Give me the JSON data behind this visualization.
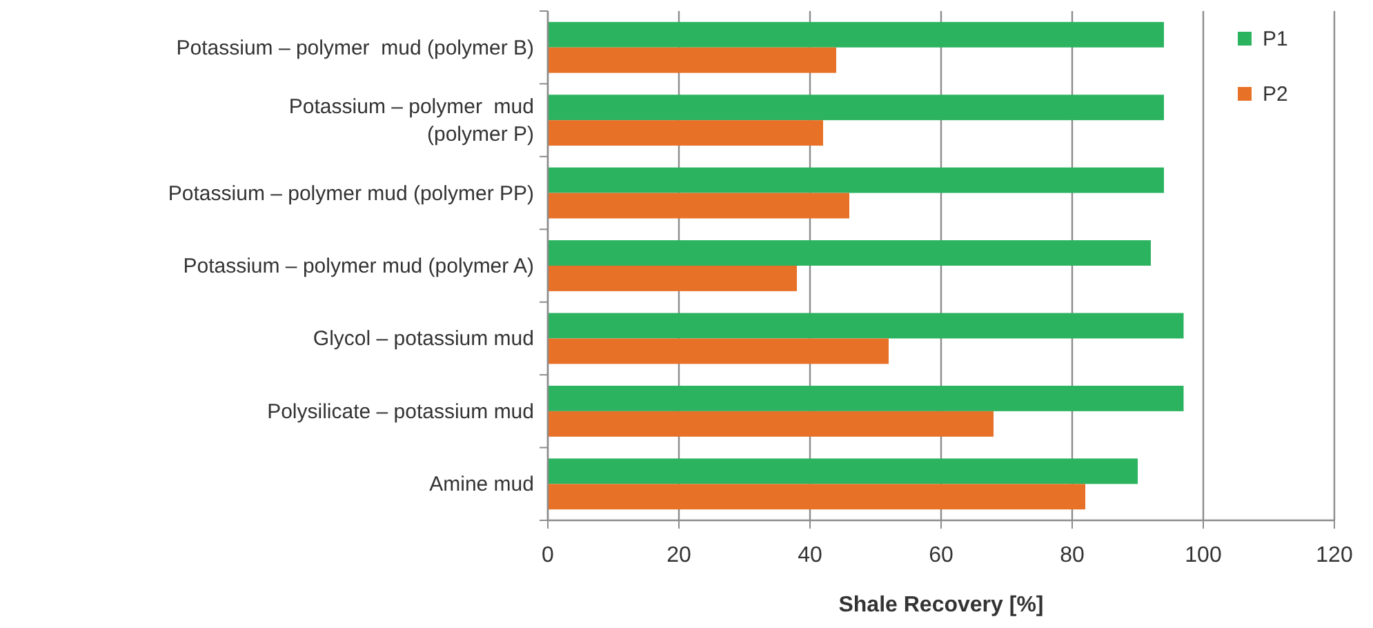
{
  "chart_data": {
    "type": "bar",
    "orientation": "horizontal",
    "xlabel": "Shale Recovery [%]",
    "categories": [
      "Potassium – polymer  mud (polymer B)",
      "Potassium – polymer  mud\n(polymer P)",
      "Potassium – polymer mud (polymer PP)",
      "Potassium – polymer mud (polymer A)",
      "Glycol – potassium mud",
      "Polysilicate – potassium mud",
      "Amine mud"
    ],
    "series": [
      {
        "name": "P1",
        "color": "#2bb35f",
        "values": [
          94,
          94,
          94,
          92,
          97,
          97,
          90
        ]
      },
      {
        "name": "P2",
        "color": "#e87128",
        "values": [
          44,
          42,
          46,
          38,
          52,
          68,
          82
        ]
      }
    ],
    "xlim": [
      0,
      120
    ],
    "xticks": [
      0,
      20,
      40,
      60,
      80,
      100,
      120
    ],
    "grid": "x",
    "legend": "top right"
  }
}
